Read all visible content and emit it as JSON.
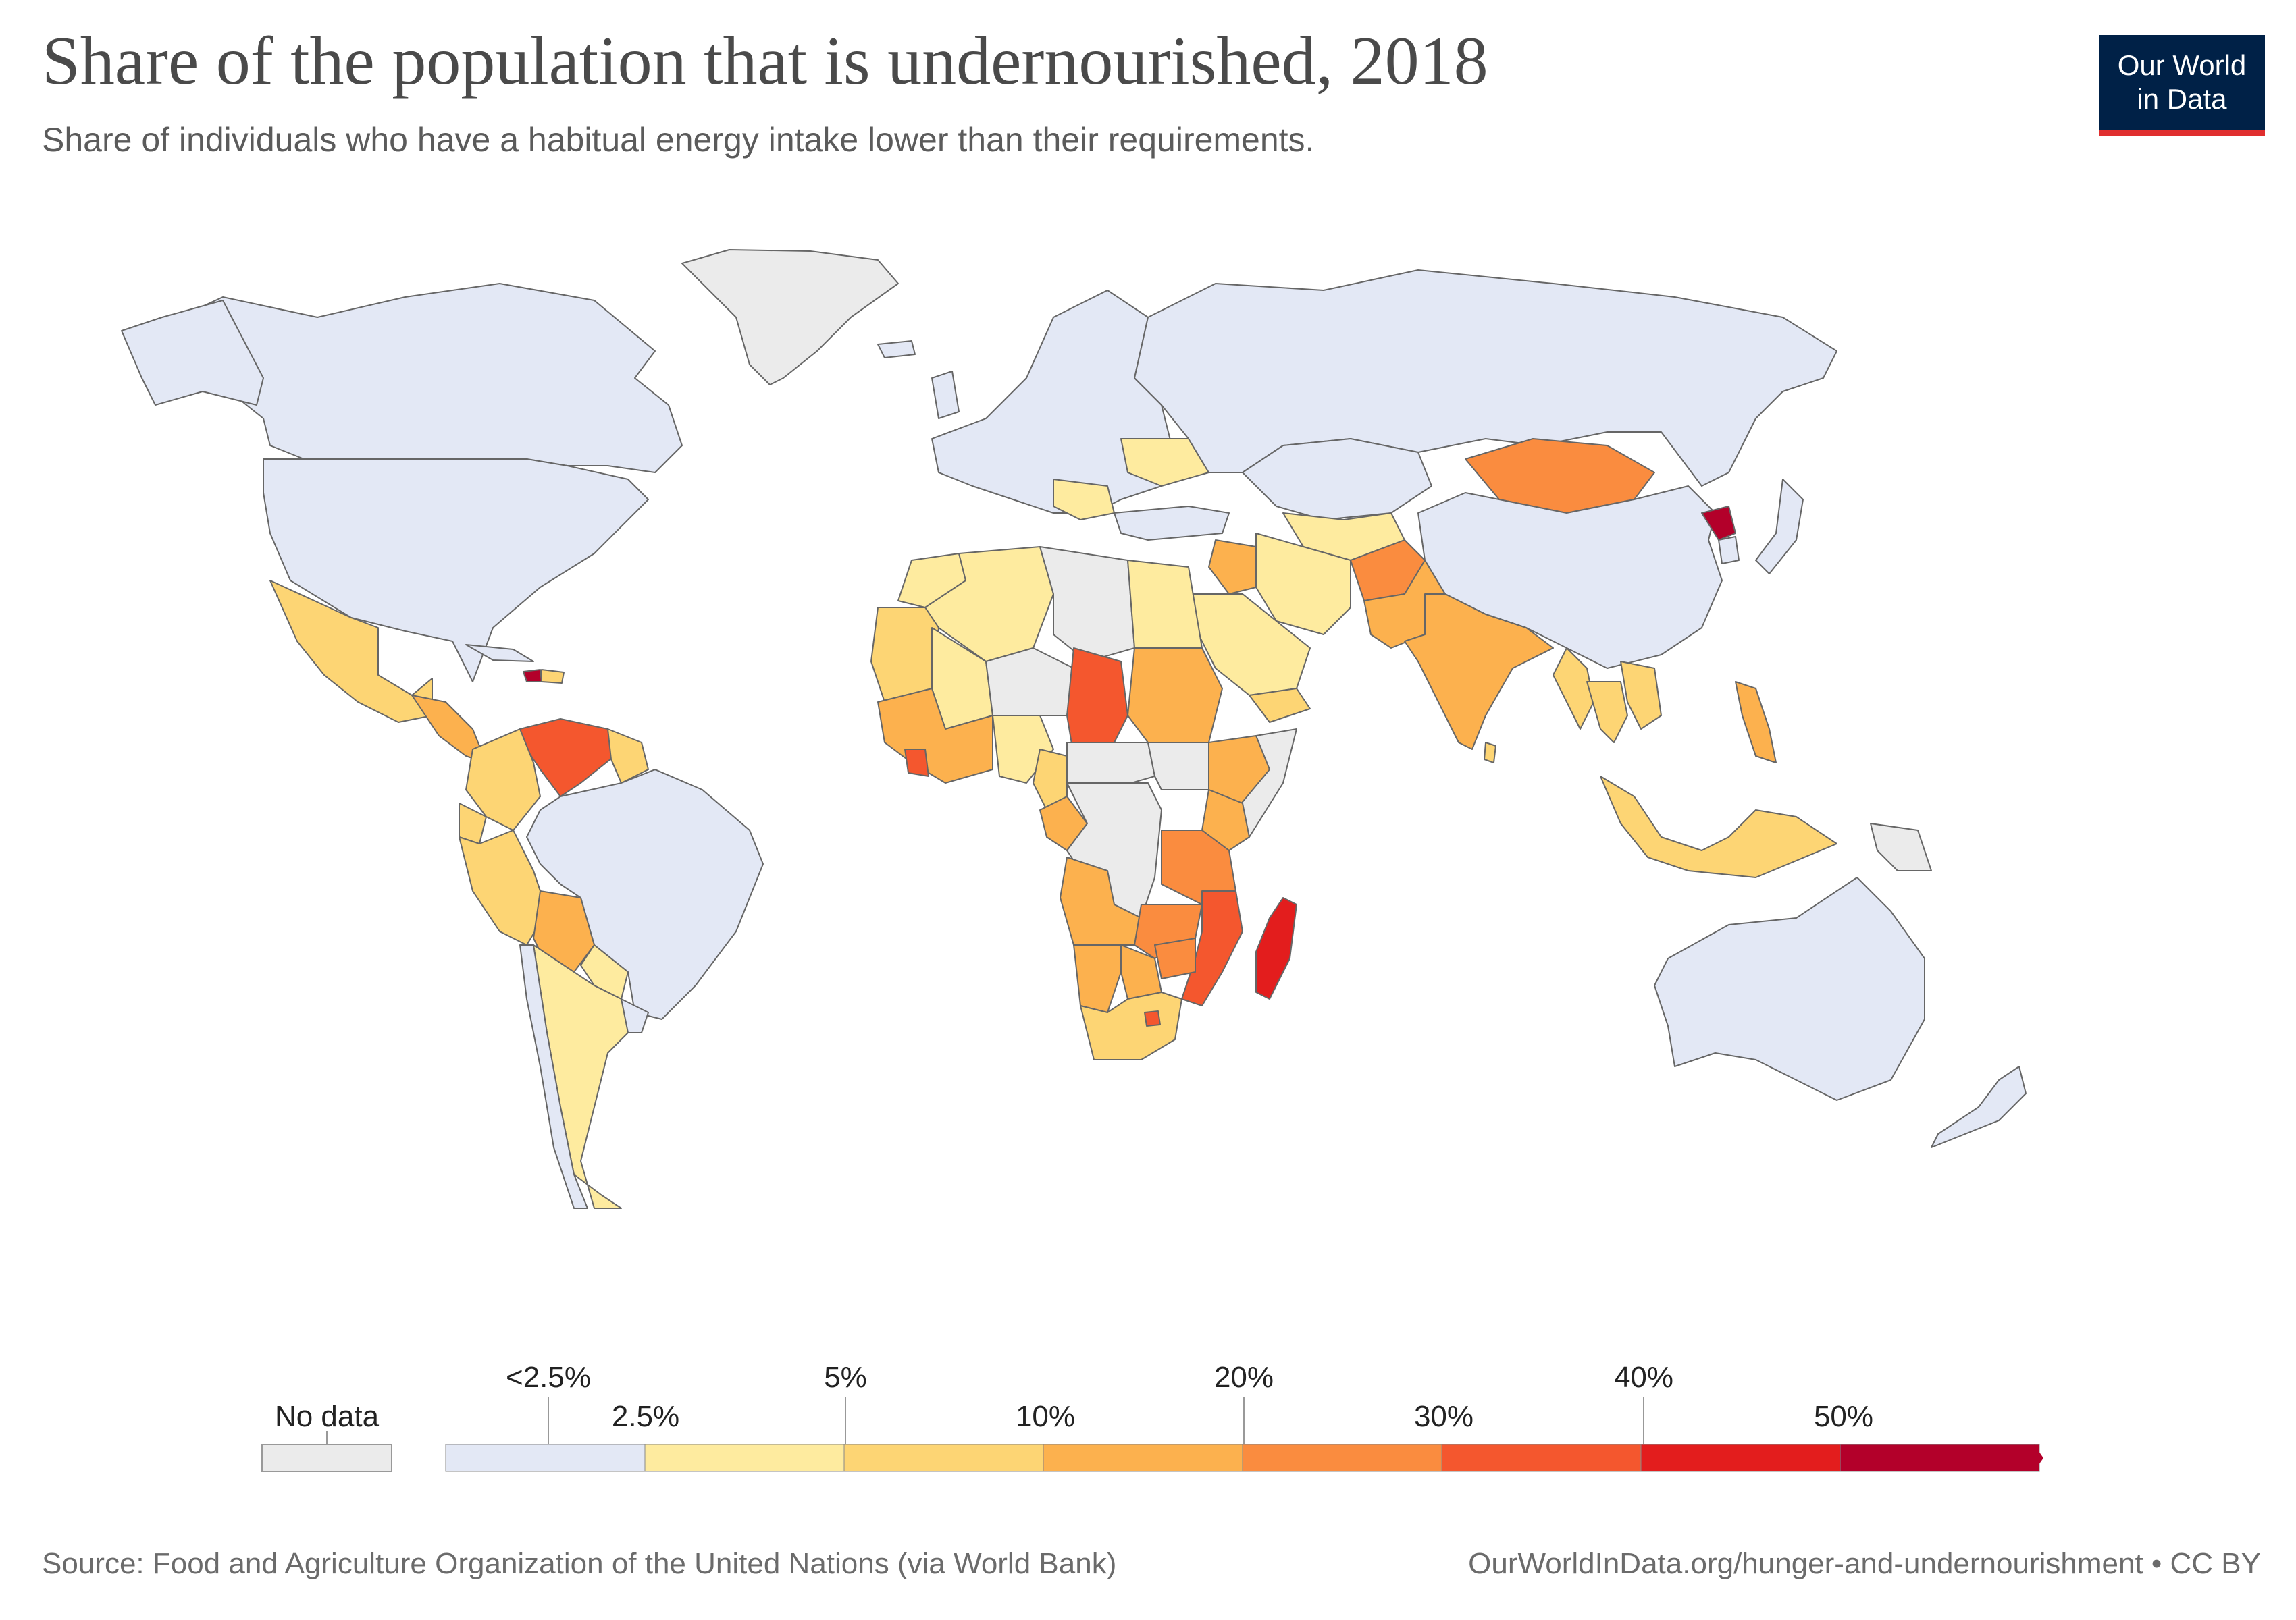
{
  "header": {
    "title": "Share of the population that is undernourished, 2018",
    "subtitle": "Share of individuals who have a habitual energy intake lower than their requirements."
  },
  "logo": {
    "line1": "Our World",
    "line2": "in Data"
  },
  "legend": {
    "no_data_label": "No data",
    "top_labels": [
      "<2.5%",
      "5%",
      "20%",
      "40%"
    ],
    "bottom_labels": [
      "2.5%",
      "10%",
      "30%",
      "50%"
    ],
    "colors": {
      "no_data": "#ebebeb",
      "bin_lt_2_5": "#e3e8f5",
      "bin_2_5_5": "#feeb9f",
      "bin_5_10": "#fdd574",
      "bin_10_20": "#fcb14e",
      "bin_20_30": "#fa8c3f",
      "bin_30_40": "#f4572e",
      "bin_40_50": "#e31d1d",
      "bin_gt_50": "#b3002a"
    }
  },
  "footer": {
    "source": "Source: Food and Agriculture Organization of the United Nations (via World Bank)",
    "url": "OurWorldInData.org/hunger-and-undernourishment • CC BY"
  }
}
